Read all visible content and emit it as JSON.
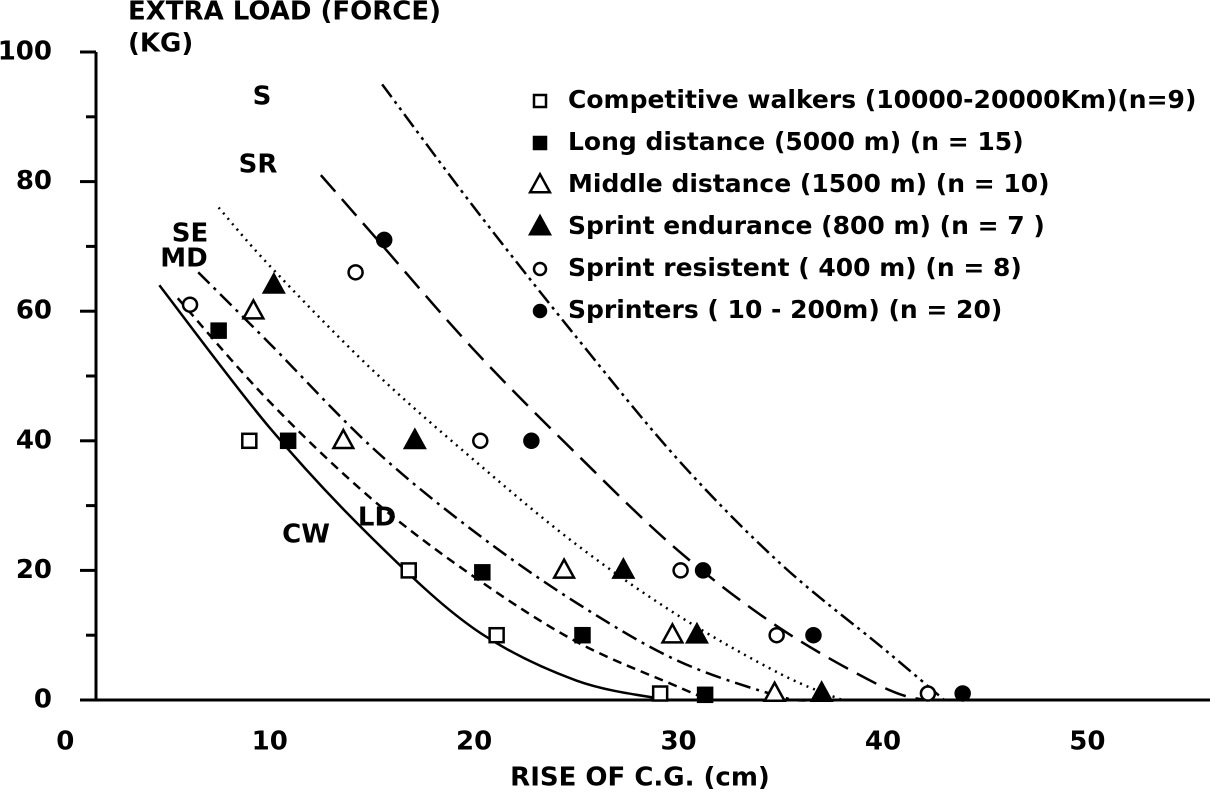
{
  "chart_data": {
    "type": "scatter",
    "ylabel": [
      "EXTRA LOAD (FORCE)",
      "(KG)"
    ],
    "xlabel": "RISE OF C.G. (cm)",
    "xlim": [
      1.5,
      56
    ],
    "ylim": [
      0,
      100
    ],
    "xticks": [
      0,
      10,
      20,
      30,
      40,
      50
    ],
    "yticks": [
      0,
      20,
      40,
      60,
      80,
      100
    ],
    "yminorticks": [
      10,
      30,
      50,
      70,
      90
    ],
    "legend": "upper right",
    "series": [
      {
        "name": "Competitive walkers (10000-20000Km)(n=9)",
        "color": "#000",
        "marker": "square",
        "filled": false,
        "x": [
          9.0,
          16.8,
          21.1,
          29.1
        ],
        "values": [
          40,
          20,
          10,
          1
        ]
      },
      {
        "name": "Long distance (5000 m) (n = 15)",
        "color": "#000",
        "marker": "square",
        "filled": true,
        "x": [
          7.5,
          10.9,
          20.4,
          25.3,
          31.3
        ],
        "values": [
          57,
          40,
          19.7,
          10,
          0.8
        ]
      },
      {
        "name": "Middle distance (1500 m) (n = 10)",
        "color": "#000",
        "marker": "triangle",
        "filled": false,
        "x": [
          9.2,
          13.6,
          24.4,
          29.7,
          34.7
        ],
        "values": [
          60,
          40,
          20,
          10,
          1
        ]
      },
      {
        "name": "Sprint endurance (800 m) (n = 7 )",
        "color": "#000",
        "marker": "triangle",
        "filled": true,
        "x": [
          10.2,
          17.1,
          27.3,
          30.9,
          37.0
        ],
        "values": [
          64,
          40,
          20,
          10,
          1
        ]
      },
      {
        "name": "Sprint resistent ( 400 m) (n = 8)",
        "color": "#000",
        "marker": "circle",
        "filled": false,
        "x": [
          6.1,
          14.2,
          20.3,
          30.1,
          34.8,
          42.2
        ],
        "values": [
          61,
          66,
          40,
          20,
          10,
          1
        ]
      },
      {
        "name": "Sprinters ( 10 - 200m) (n = 20)",
        "color": "#000",
        "marker": "circle",
        "filled": true,
        "x": [
          15.6,
          22.8,
          31.2,
          36.6,
          43.9
        ],
        "values": [
          71,
          40,
          20,
          10,
          1
        ]
      }
    ],
    "curves": [
      {
        "name": "CW",
        "dash": "solid",
        "x": [
          4.6,
          10,
          15,
          20,
          25,
          29.5
        ],
        "values": [
          64,
          42,
          25,
          11,
          3,
          0
        ]
      },
      {
        "name": "LD",
        "dash": "short-dash",
        "x": [
          5.5,
          10,
          15,
          20,
          25,
          30,
          31.5
        ],
        "values": [
          62,
          46,
          31,
          19,
          9,
          2,
          0
        ]
      },
      {
        "name": "MD",
        "dash": "dash-dot",
        "x": [
          6.5,
          10,
          15,
          20,
          25,
          30,
          35,
          36.5
        ],
        "values": [
          66,
          55,
          39,
          26,
          15,
          6,
          0.5,
          0
        ]
      },
      {
        "name": "SE",
        "dash": "dotted",
        "x": [
          7.5,
          10,
          15,
          20,
          25,
          30,
          35,
          38
        ],
        "values": [
          76,
          67,
          51,
          37,
          24,
          13,
          4,
          0
        ]
      },
      {
        "name": "SR",
        "dash": "long-dash",
        "x": [
          12.5,
          15,
          20,
          25,
          30,
          35,
          40,
          42
        ],
        "values": [
          81,
          72,
          54,
          38,
          23,
          11,
          2,
          0
        ]
      },
      {
        "name": "S",
        "dash": "dash-dot-dot",
        "x": [
          15.5,
          20,
          25,
          30,
          35,
          40,
          43
        ],
        "values": [
          95,
          76,
          56,
          37,
          21,
          8,
          0
        ]
      }
    ]
  }
}
